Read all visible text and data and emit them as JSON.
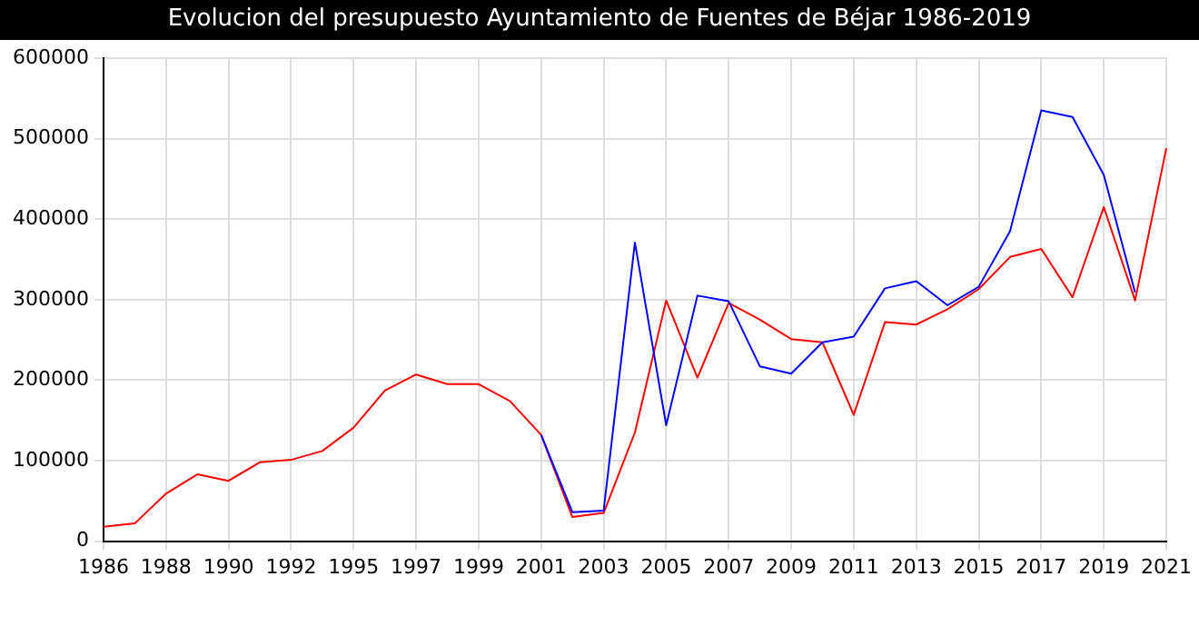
{
  "chart_data": {
    "type": "line",
    "title": "Evolucion del presupuesto Ayuntamiento de Fuentes de Béjar 1986-2019",
    "categories": [
      "1986",
      null,
      "1988",
      null,
      "1990",
      null,
      "1992",
      null,
      "1995",
      null,
      "1997",
      null,
      "1999",
      null,
      "2001",
      null,
      "2003",
      null,
      "2005",
      null,
      "2007",
      null,
      "2009",
      null,
      "2011",
      null,
      "2013",
      null,
      "2015",
      null,
      "2017",
      null,
      "2019",
      null,
      "2021"
    ],
    "series": [
      {
        "color": "#0000ff",
        "values": [
          null,
          null,
          null,
          null,
          null,
          null,
          null,
          null,
          null,
          null,
          null,
          null,
          null,
          null,
          132000,
          36000,
          38000,
          371000,
          144000,
          305000,
          298000,
          217000,
          208000,
          247000,
          254000,
          314000,
          323000,
          293000,
          316000,
          385000,
          535000,
          527000,
          455000,
          309000,
          null
        ]
      },
      {
        "color": "#ff0000",
        "values": [
          18000,
          22000,
          59000,
          83000,
          75000,
          98000,
          101000,
          112000,
          141000,
          187000,
          207000,
          195000,
          195000,
          174000,
          132000,
          30000,
          35000,
          135000,
          299000,
          203000,
          296000,
          275000,
          251000,
          247000,
          157000,
          272000,
          269000,
          288000,
          313000,
          353000,
          363000,
          303000,
          415000,
          299000,
          488000
        ]
      }
    ],
    "ylim": [
      0,
      600000
    ],
    "yticks": [
      0,
      100000,
      200000,
      300000,
      400000,
      500000,
      600000
    ],
    "grid": true,
    "legend": false,
    "marker": "none",
    "line_style": "solid"
  }
}
